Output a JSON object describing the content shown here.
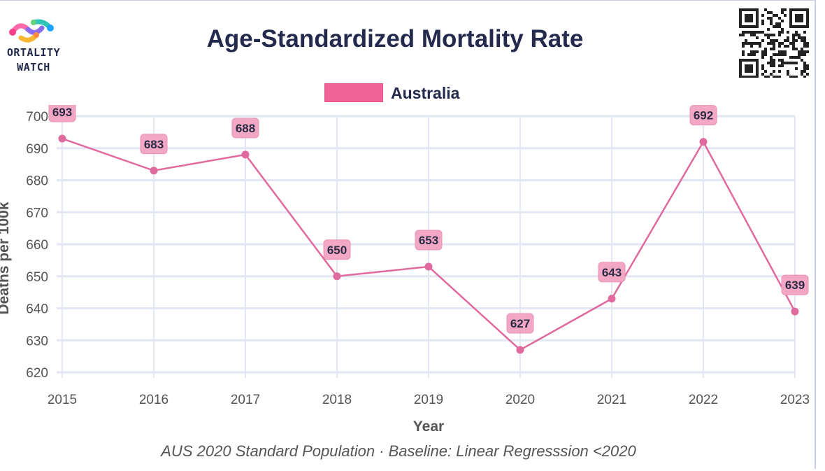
{
  "logo": {
    "line1": "ORTALITY",
    "line2": "WATCH"
  },
  "qr_icon": "qr-code-icon",
  "colors": {
    "series": "#e0699d",
    "label_bg": "#f2a8c5",
    "grid": "#e3e6f3",
    "text": "#242a4d"
  },
  "chart_data": {
    "type": "line",
    "title": "Age-Standardized Mortality Rate",
    "xlabel": "Year",
    "ylabel": "Deaths per 100k",
    "categories": [
      "2015",
      "2016",
      "2017",
      "2018",
      "2019",
      "2020",
      "2021",
      "2022",
      "2023"
    ],
    "series": [
      {
        "name": "Australia",
        "values": [
          693,
          683,
          688,
          650,
          653,
          627,
          643,
          692,
          639
        ]
      }
    ],
    "data_labels": [
      "693",
      "683",
      "688",
      "650",
      "653",
      "627",
      "643",
      "692",
      "639"
    ],
    "ylim": [
      620,
      700
    ],
    "yticks": [
      "620",
      "630",
      "640",
      "650",
      "660",
      "670",
      "680",
      "690",
      "700"
    ],
    "legend": "top-center",
    "grid": true,
    "footnote": "AUS 2020 Standard Population · Baseline: Linear Regresssion <2020"
  }
}
